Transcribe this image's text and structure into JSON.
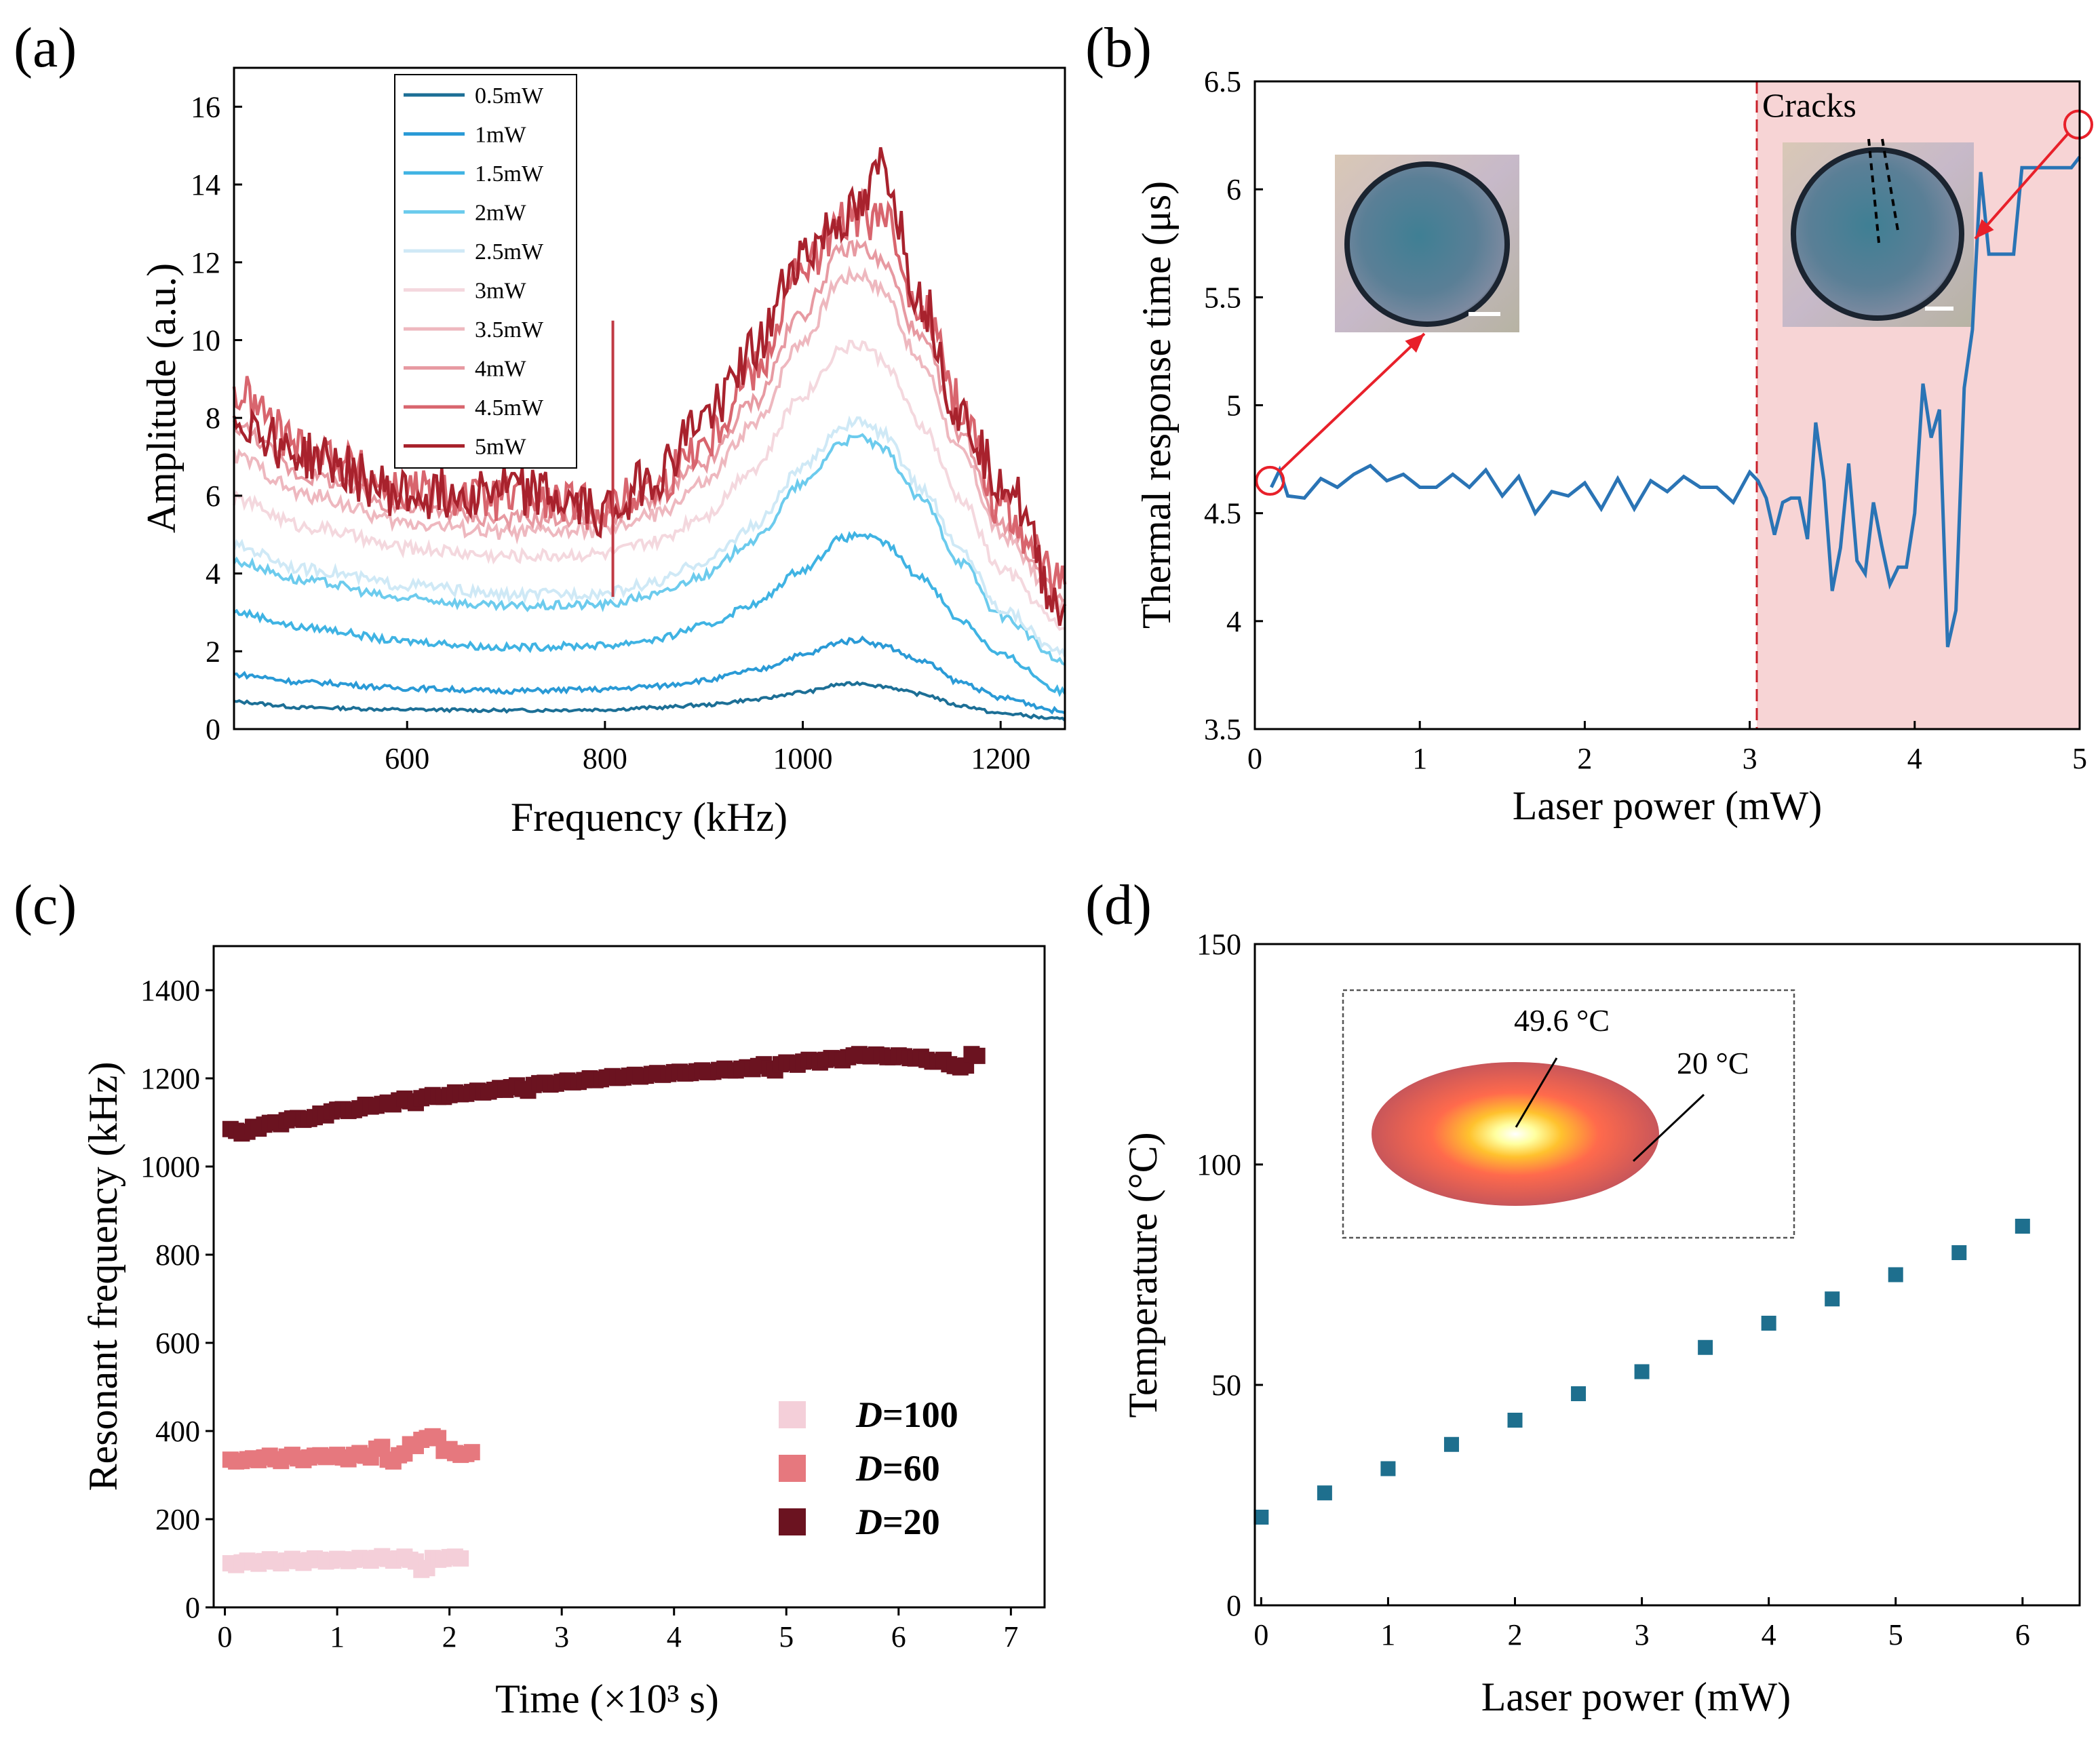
{
  "panels": {
    "a": {
      "label": "(a)"
    },
    "b": {
      "label": "(b)"
    },
    "c": {
      "label": "(c)"
    },
    "d": {
      "label": "(d)"
    }
  },
  "colors": {
    "b_line": "#2a74b5",
    "b_region": "#f7d4d5",
    "d_marker": "#1e6f8e",
    "c_D100": "#f4cfd9",
    "c_D60": "#e6787e",
    "c_D20": "#6b1320",
    "annotation_red": "#e8202a"
  },
  "chart_data": [
    {
      "id": "a",
      "type": "line",
      "title": "",
      "xlabel": "Frequency (kHz)",
      "ylabel": "Amplitude (a.u.)",
      "xlim": [
        425,
        1265
      ],
      "ylim": [
        0,
        17
      ],
      "xticks": [
        "600",
        "800",
        "1000",
        "1200"
      ],
      "yticks": [
        "0",
        "2",
        "4",
        "6",
        "8",
        "10",
        "12",
        "14",
        "16"
      ],
      "legend_position": "top-left",
      "x": [
        425,
        500,
        600,
        700,
        800,
        850,
        900,
        950,
        1000,
        1040,
        1060,
        1080,
        1120,
        1160,
        1200,
        1265
      ],
      "series": [
        {
          "name": "0.5mW",
          "color": "#1c6f96",
          "values": [
            0.7,
            0.55,
            0.5,
            0.48,
            0.5,
            0.55,
            0.62,
            0.75,
            0.95,
            1.15,
            1.18,
            1.1,
            0.9,
            0.6,
            0.4,
            0.25
          ]
        },
        {
          "name": "1mW",
          "color": "#2a9ad6",
          "values": [
            1.4,
            1.2,
            1.05,
            0.98,
            1.02,
            1.1,
            1.25,
            1.5,
            1.9,
            2.25,
            2.3,
            2.15,
            1.75,
            1.2,
            0.8,
            0.45
          ]
        },
        {
          "name": "1.5mW",
          "color": "#3fb3e3",
          "values": [
            3.0,
            2.6,
            2.25,
            2.1,
            2.15,
            2.3,
            2.65,
            3.2,
            4.1,
            4.9,
            5.0,
            4.8,
            3.9,
            2.8,
            1.9,
            0.95
          ]
        },
        {
          "name": "2mW",
          "color": "#6ccbed",
          "values": [
            4.3,
            3.8,
            3.35,
            3.15,
            3.2,
            3.45,
            3.95,
            4.85,
            6.3,
            7.4,
            7.5,
            7.2,
            5.9,
            4.3,
            2.9,
            1.7
          ]
        },
        {
          "name": "2.5mW",
          "color": "#cfe9f6",
          "values": [
            4.7,
            4.1,
            3.7,
            3.45,
            3.5,
            3.75,
            4.3,
            5.2,
            6.7,
            7.8,
            7.9,
            7.6,
            6.2,
            4.6,
            3.1,
            1.9
          ]
        },
        {
          "name": "3mW",
          "color": "#f4d8de",
          "values": [
            5.9,
            5.2,
            4.65,
            4.45,
            4.5,
            4.8,
            5.5,
            6.7,
            8.6,
            9.8,
            9.9,
            9.5,
            7.8,
            5.9,
            4.1,
            2.6
          ]
        },
        {
          "name": "3.5mW",
          "color": "#eeb8bf",
          "values": [
            7.0,
            6.0,
            5.3,
            5.05,
            5.1,
            5.5,
            6.3,
            7.8,
            10.0,
            11.6,
            11.7,
            11.3,
            9.4,
            7.1,
            5.0,
            3.1
          ]
        },
        {
          "name": "4mW",
          "color": "#e79aa2",
          "values": [
            7.8,
            6.5,
            5.7,
            5.4,
            5.45,
            5.9,
            6.8,
            8.4,
            10.7,
            12.3,
            12.4,
            12.0,
            10.0,
            7.6,
            5.3,
            3.3
          ]
        },
        {
          "name": "4.5mW",
          "color": "#d8656e",
          "values": [
            8.6,
            7.2,
            6.1,
            5.9,
            5.7,
            6.2,
            7.4,
            9.2,
            11.8,
            13.0,
            13.2,
            13.1,
            10.9,
            8.3,
            5.7,
            3.6
          ]
        },
        {
          "name": "5mW",
          "color": "#a8222d",
          "values": [
            8.0,
            7.0,
            6.0,
            6.2,
            5.6,
            6.5,
            8.0,
            9.7,
            12.2,
            13.1,
            13.3,
            14.5,
            11.0,
            8.0,
            6.5,
            3.0
          ]
        }
      ],
      "spikes": [
        {
          "x": 808,
          "top": 10.5,
          "bottom": 3.4
        }
      ]
    },
    {
      "id": "b",
      "type": "line",
      "title": "",
      "xlabel": "Laser power (mW)",
      "ylabel": "Thermal response time (μs)",
      "xlim": [
        0,
        5
      ],
      "ylim": [
        3.5,
        6.5
      ],
      "xticks": [
        "0",
        "1",
        "2",
        "3",
        "4",
        "5"
      ],
      "yticks": [
        "3.5",
        "4",
        "4.5",
        "5",
        "5.5",
        "6",
        "6.5"
      ],
      "threshold_x": 3,
      "shaded_region": [
        3,
        5
      ],
      "annotation": "Cracks",
      "series": [
        {
          "name": "response time",
          "x": [
            0.1,
            0.15,
            0.2,
            0.3,
            0.4,
            0.5,
            0.6,
            0.7,
            0.8,
            0.9,
            1.0,
            1.1,
            1.2,
            1.3,
            1.4,
            1.5,
            1.6,
            1.7,
            1.8,
            1.9,
            2.0,
            2.1,
            2.2,
            2.3,
            2.4,
            2.5,
            2.6,
            2.7,
            2.8,
            2.9,
            3.0,
            3.05,
            3.1,
            3.15,
            3.2,
            3.25,
            3.3,
            3.35,
            3.4,
            3.45,
            3.5,
            3.55,
            3.6,
            3.65,
            3.7,
            3.75,
            3.8,
            3.85,
            3.9,
            3.95,
            4.0,
            4.05,
            4.1,
            4.15,
            4.2,
            4.25,
            4.3,
            4.35,
            4.4,
            4.45,
            4.5,
            4.55,
            4.6,
            4.65,
            4.7,
            4.75,
            4.8,
            4.85,
            4.9,
            4.95,
            5.0
          ],
          "values": [
            4.62,
            4.7,
            4.58,
            4.57,
            4.66,
            4.62,
            4.68,
            4.72,
            4.65,
            4.68,
            4.62,
            4.62,
            4.68,
            4.62,
            4.7,
            4.58,
            4.67,
            4.5,
            4.6,
            4.58,
            4.64,
            4.52,
            4.66,
            4.52,
            4.65,
            4.6,
            4.67,
            4.62,
            4.62,
            4.55,
            4.69,
            4.65,
            4.57,
            4.4,
            4.55,
            4.57,
            4.57,
            4.38,
            4.92,
            4.65,
            4.14,
            4.34,
            4.73,
            4.28,
            4.22,
            4.55,
            4.35,
            4.17,
            4.25,
            4.25,
            4.5,
            5.1,
            4.85,
            4.98,
            3.88,
            4.05,
            5.08,
            5.35,
            6.08,
            5.7,
            5.7,
            5.7,
            5.7,
            6.1,
            6.1,
            6.1,
            6.1,
            6.1,
            6.1,
            6.1,
            6.15
          ]
        }
      ]
    },
    {
      "id": "c",
      "type": "scatter",
      "title": "",
      "xlabel": "Time (×10³ s)",
      "ylabel": "Resonant frequency (kHz)",
      "xlim": [
        -0.1,
        7.3
      ],
      "ylim": [
        0,
        1500
      ],
      "xticks": [
        "0",
        "1",
        "2",
        "3",
        "4",
        "5",
        "6",
        "7"
      ],
      "yticks": [
        "0",
        "200",
        "400",
        "600",
        "800",
        "1000",
        "1200",
        "1400"
      ],
      "legend_position": "bottom-right",
      "series": [
        {
          "name": "D=100",
          "legend_italic": "D",
          "legend_rest": "=100",
          "x": [
            0.05,
            0.15,
            0.25,
            0.35,
            0.45,
            0.55,
            0.65,
            0.75,
            0.85,
            0.95,
            1.05,
            1.15,
            1.25,
            1.35,
            1.45,
            1.55,
            1.65,
            1.75,
            1.85,
            1.95,
            2.05
          ],
          "values": [
            100,
            102,
            103,
            105,
            104,
            106,
            105,
            107,
            108,
            106,
            109,
            108,
            110,
            112,
            110,
            111,
            108,
            85,
            112,
            110,
            115
          ]
        },
        {
          "name": "D=60",
          "legend_italic": "D",
          "legend_rest": "=60",
          "x": [
            0.05,
            0.15,
            0.25,
            0.35,
            0.45,
            0.55,
            0.65,
            0.75,
            0.85,
            0.95,
            1.05,
            1.15,
            1.25,
            1.35,
            1.45,
            1.55,
            1.65,
            1.75,
            1.85,
            1.95,
            2.05,
            2.15
          ],
          "values": [
            335,
            332,
            338,
            340,
            336,
            342,
            338,
            340,
            345,
            342,
            340,
            346,
            344,
            360,
            335,
            345,
            370,
            380,
            388,
            355,
            350,
            348
          ]
        },
        {
          "name": "D=20",
          "legend_italic": "D",
          "legend_rest": "=20",
          "x": [
            0.05,
            0.15,
            0.25,
            0.35,
            0.45,
            0.55,
            0.65,
            0.75,
            0.85,
            0.95,
            1.05,
            1.15,
            1.25,
            1.35,
            1.45,
            1.55,
            1.65,
            1.75,
            1.85,
            1.95,
            2.05,
            2.15,
            2.25,
            2.35,
            2.45,
            2.55,
            2.65,
            2.75,
            2.85,
            2.95,
            3.05,
            3.15,
            3.25,
            3.35,
            3.45,
            3.55,
            3.65,
            3.75,
            3.85,
            3.95,
            4.05,
            4.15,
            4.25,
            4.35,
            4.45,
            4.55,
            4.65,
            4.75,
            4.85,
            4.95,
            5.05,
            5.15,
            5.25,
            5.35,
            5.45,
            5.55,
            5.65,
            5.75,
            5.85,
            5.95,
            6.05,
            6.15,
            6.25,
            6.35,
            6.45,
            6.55,
            6.65
          ],
          "values": [
            1085,
            1075,
            1090,
            1095,
            1100,
            1105,
            1110,
            1108,
            1120,
            1125,
            1130,
            1128,
            1140,
            1138,
            1145,
            1150,
            1148,
            1155,
            1162,
            1158,
            1168,
            1165,
            1172,
            1170,
            1178,
            1180,
            1176,
            1185,
            1190,
            1188,
            1195,
            1192,
            1200,
            1198,
            1205,
            1202,
            1208,
            1206,
            1212,
            1210,
            1215,
            1212,
            1218,
            1215,
            1222,
            1218,
            1225,
            1228,
            1222,
            1232,
            1235,
            1238,
            1240,
            1242,
            1245,
            1248,
            1255,
            1250,
            1252,
            1248,
            1250,
            1245,
            1242,
            1238,
            1232,
            1225,
            1255
          ]
        }
      ]
    },
    {
      "id": "d",
      "type": "scatter",
      "title": "",
      "xlabel": "Laser power (mW)",
      "ylabel": "Temperature (°C)",
      "xlim": [
        -0.05,
        6.45
      ],
      "ylim": [
        0,
        150
      ],
      "xticks": [
        "0",
        "1",
        "2",
        "3",
        "4",
        "5",
        "6"
      ],
      "yticks": [
        "0",
        "50",
        "100",
        "150"
      ],
      "series": [
        {
          "name": "temperature",
          "x": [
            0,
            0.5,
            1.0,
            1.5,
            2.0,
            2.5,
            3.0,
            3.5,
            4.0,
            4.5,
            5.0,
            5.5,
            6.0
          ],
          "values": [
            20,
            25.5,
            31,
            36.5,
            42,
            48,
            53,
            58.5,
            64,
            69.5,
            75,
            80,
            86
          ]
        }
      ],
      "inset_labels": {
        "hot": "49.6 °C",
        "cold": "20 °C"
      }
    }
  ]
}
